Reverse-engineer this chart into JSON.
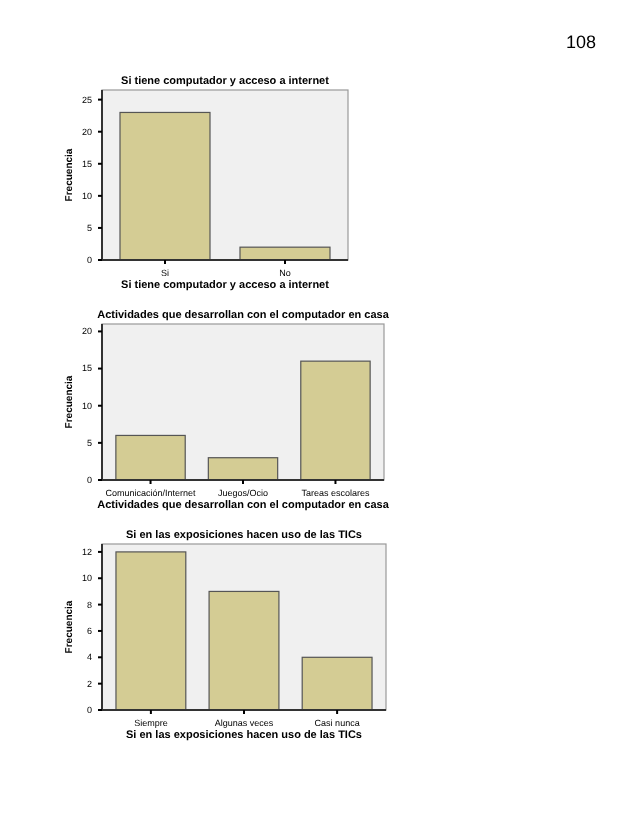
{
  "chart_data": [
    {
      "type": "bar",
      "title": "Si tiene computador y acceso a internet",
      "xlabel": "Si tiene computador y acceso a internet",
      "ylabel": "Frecuencia",
      "annotations": [
        "108"
      ],
      "categories": [
        "Si",
        "No"
      ],
      "values": [
        23,
        2
      ],
      "color": "#d4cc94",
      "ylim": [
        0,
        26.5
      ],
      "yticks": [
        0,
        5,
        10,
        15,
        20,
        25
      ],
      "grid": false
    },
    {
      "type": "bar",
      "title": "Actividades que desarrollan con el computador en casa",
      "xlabel": "Actividades que desarrollan con el computador en casa",
      "ylabel": "Frecuencia",
      "categories": [
        "Comunicación/Internet",
        "Juegos/Ocio",
        "Tareas escolares"
      ],
      "values": [
        6,
        3,
        16
      ],
      "color": "#d4cc94",
      "ylim": [
        0,
        21
      ],
      "yticks": [
        0,
        5,
        10,
        15,
        20
      ],
      "grid": false
    },
    {
      "type": "bar",
      "title": "Si en las exposiciones hacen uso de las TICs",
      "xlabel": "Si en las exposiciones hacen uso de las TICs",
      "ylabel": "Frecuencia",
      "categories": [
        "Siempre",
        "Algunas veces",
        "Casi nunca"
      ],
      "values": [
        12,
        9,
        4
      ],
      "color": "#d4cc94",
      "ylim": [
        0,
        12.6
      ],
      "yticks": [
        0,
        2,
        4,
        6,
        8,
        10,
        12
      ],
      "grid": false
    }
  ]
}
